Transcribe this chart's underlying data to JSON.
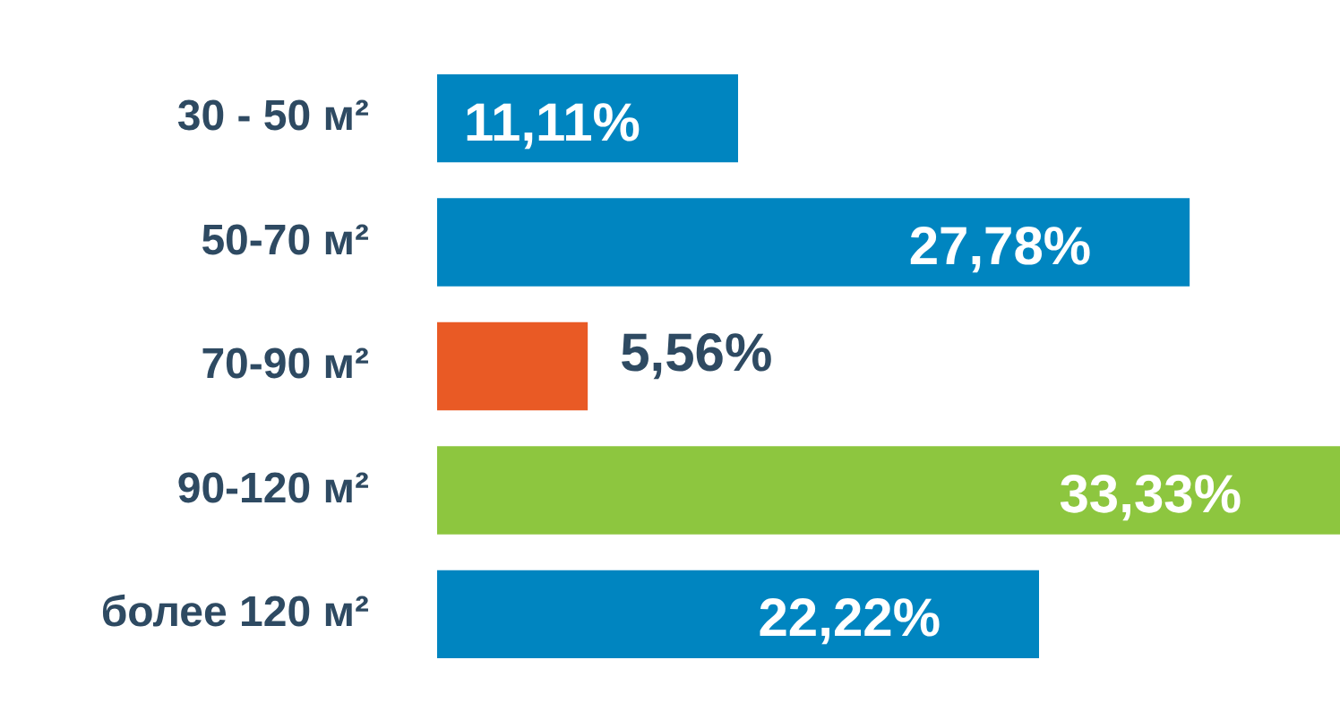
{
  "chart_data": {
    "type": "bar",
    "orientation": "horizontal",
    "categories": [
      "30 - 50 м²",
      "50-70 м²",
      "70-90 м²",
      "90-120 м²",
      "более 120 м²"
    ],
    "values": [
      11.11,
      27.78,
      5.56,
      33.33,
      22.22
    ],
    "colors": [
      "#0085c0",
      "#0085c0",
      "#e95a25",
      "#8dc63f",
      "#0085c0"
    ],
    "value_labels": [
      "11,11%",
      "27,78%",
      "5,56%",
      "33,33%",
      "22,22%"
    ],
    "grid": false,
    "legend": false
  }
}
